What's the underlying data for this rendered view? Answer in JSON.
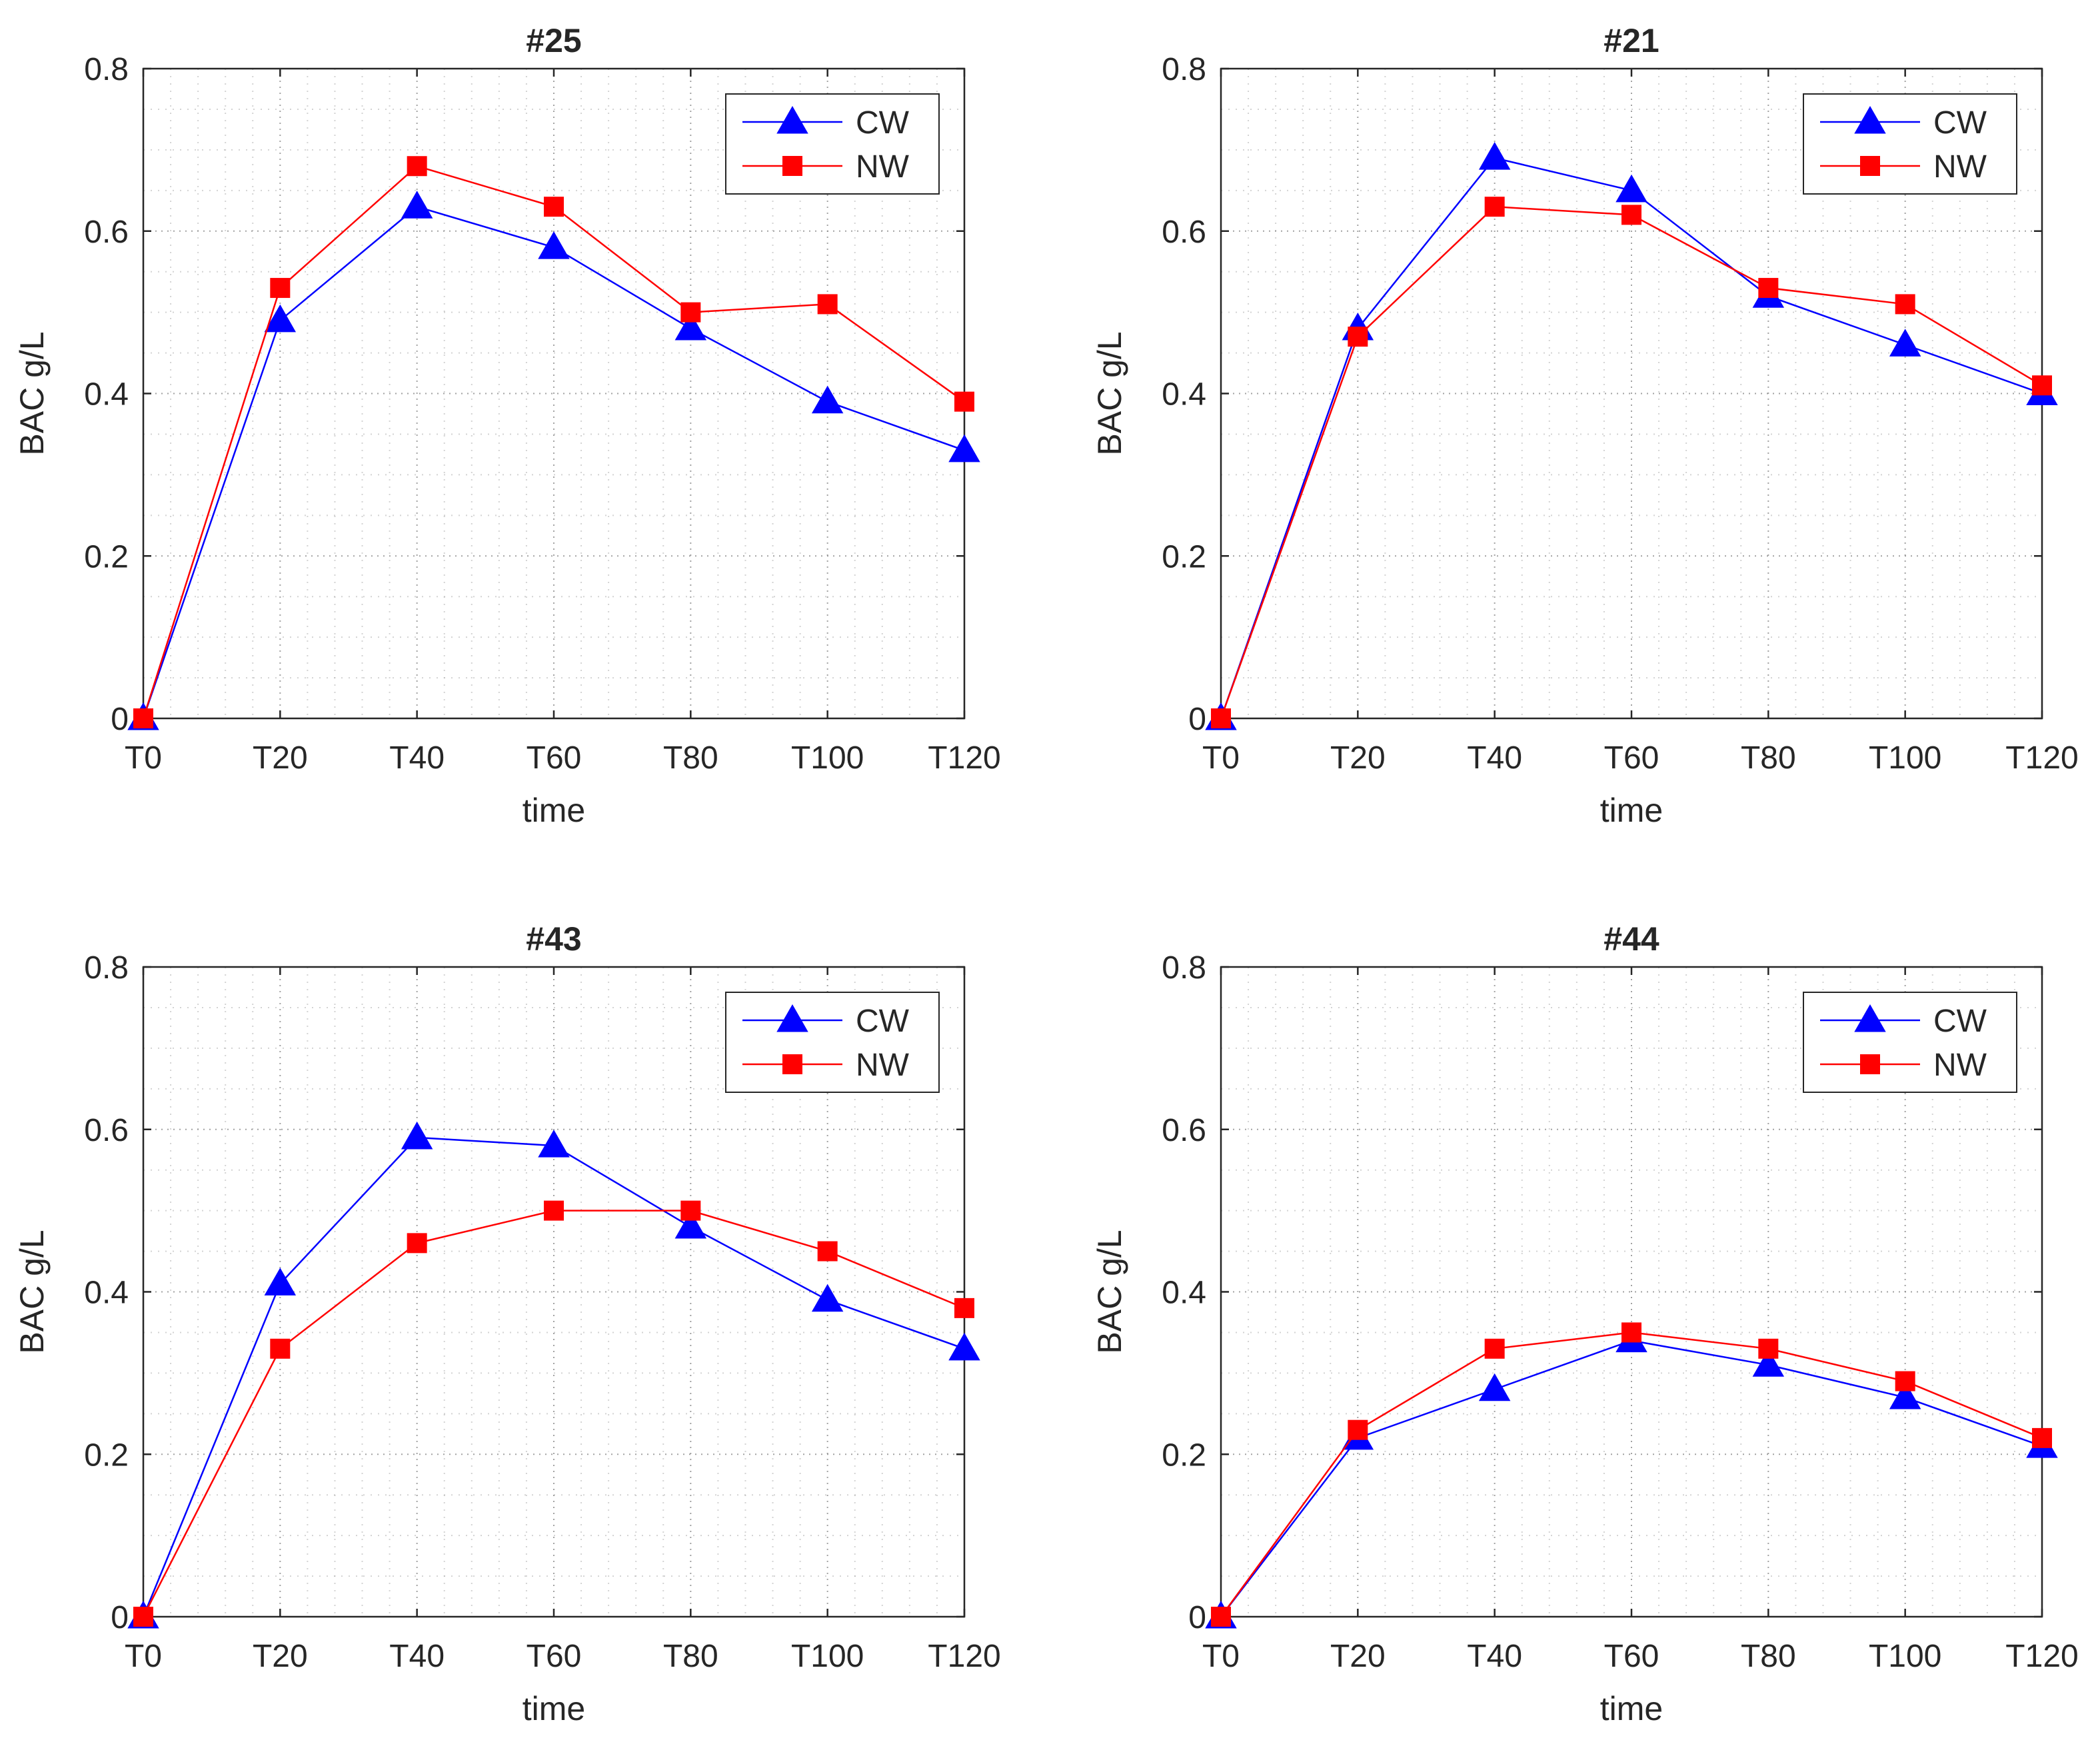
{
  "figure": {
    "colors": {
      "cw": "#0000ff",
      "nw": "#ff0000",
      "axis": "#262626",
      "grid": "#b0b0b0"
    },
    "charts": [
      "p25",
      "p21",
      "p43",
      "p44"
    ]
  },
  "chart_data": [
    {
      "id": "p25",
      "type": "line",
      "title": "#25",
      "xlabel": "time",
      "ylabel": "BAC g/L",
      "categories": [
        "T0",
        "T20",
        "T40",
        "T60",
        "T80",
        "T100",
        "T120"
      ],
      "ylim": [
        0,
        0.8
      ],
      "yticks": [
        "0",
        "0.2",
        "0.4",
        "0.6",
        "0.8"
      ],
      "ytick_values": [
        0,
        0.2,
        0.4,
        0.6,
        0.8
      ],
      "grid": true,
      "legend_position": "top-right",
      "series": [
        {
          "name": "CW",
          "marker": "triangle",
          "color": "#0000ff",
          "values": [
            0,
            0.49,
            0.63,
            0.58,
            0.48,
            0.39,
            0.33
          ]
        },
        {
          "name": "NW",
          "marker": "square",
          "color": "#ff0000",
          "values": [
            0,
            0.53,
            0.68,
            0.63,
            0.5,
            0.51,
            0.39
          ]
        }
      ]
    },
    {
      "id": "p21",
      "type": "line",
      "title": "#21",
      "xlabel": "time",
      "ylabel": "BAC g/L",
      "categories": [
        "T0",
        "T20",
        "T40",
        "T60",
        "T80",
        "T100",
        "T120"
      ],
      "ylim": [
        0,
        0.8
      ],
      "yticks": [
        "0",
        "0.2",
        "0.4",
        "0.6",
        "0.8"
      ],
      "ytick_values": [
        0,
        0.2,
        0.4,
        0.6,
        0.8
      ],
      "grid": true,
      "legend_position": "top-right",
      "series": [
        {
          "name": "CW",
          "marker": "triangle",
          "color": "#0000ff",
          "values": [
            0,
            0.48,
            0.69,
            0.65,
            0.52,
            0.46,
            0.4
          ]
        },
        {
          "name": "NW",
          "marker": "square",
          "color": "#ff0000",
          "values": [
            0,
            0.47,
            0.63,
            0.62,
            0.53,
            0.51,
            0.41
          ]
        }
      ]
    },
    {
      "id": "p43",
      "type": "line",
      "title": "#43",
      "xlabel": "time",
      "ylabel": "BAC g/L",
      "categories": [
        "T0",
        "T20",
        "T40",
        "T60",
        "T80",
        "T100",
        "T120"
      ],
      "ylim": [
        0,
        0.8
      ],
      "yticks": [
        "0",
        "0.2",
        "0.4",
        "0.6",
        "0.8"
      ],
      "ytick_values": [
        0,
        0.2,
        0.4,
        0.6,
        0.8
      ],
      "grid": true,
      "legend_position": "top-right",
      "series": [
        {
          "name": "CW",
          "marker": "triangle",
          "color": "#0000ff",
          "values": [
            0,
            0.41,
            0.59,
            0.58,
            0.48,
            0.39,
            0.33
          ]
        },
        {
          "name": "NW",
          "marker": "square",
          "color": "#ff0000",
          "values": [
            0,
            0.33,
            0.46,
            0.5,
            0.5,
            0.45,
            0.38
          ]
        }
      ]
    },
    {
      "id": "p44",
      "type": "line",
      "title": "#44",
      "xlabel": "time",
      "ylabel": "BAC g/L",
      "categories": [
        "T0",
        "T20",
        "T40",
        "T60",
        "T80",
        "T100",
        "T120"
      ],
      "ylim": [
        0,
        0.8
      ],
      "yticks": [
        "0",
        "0.2",
        "0.4",
        "0.6",
        "0.8"
      ],
      "ytick_values": [
        0,
        0.2,
        0.4,
        0.6,
        0.8
      ],
      "grid": true,
      "legend_position": "top-right",
      "series": [
        {
          "name": "CW",
          "marker": "triangle",
          "color": "#0000ff",
          "values": [
            0,
            0.22,
            0.28,
            0.34,
            0.31,
            0.27,
            0.21
          ]
        },
        {
          "name": "NW",
          "marker": "square",
          "color": "#ff0000",
          "values": [
            0,
            0.23,
            0.33,
            0.35,
            0.33,
            0.29,
            0.22
          ]
        }
      ]
    }
  ]
}
